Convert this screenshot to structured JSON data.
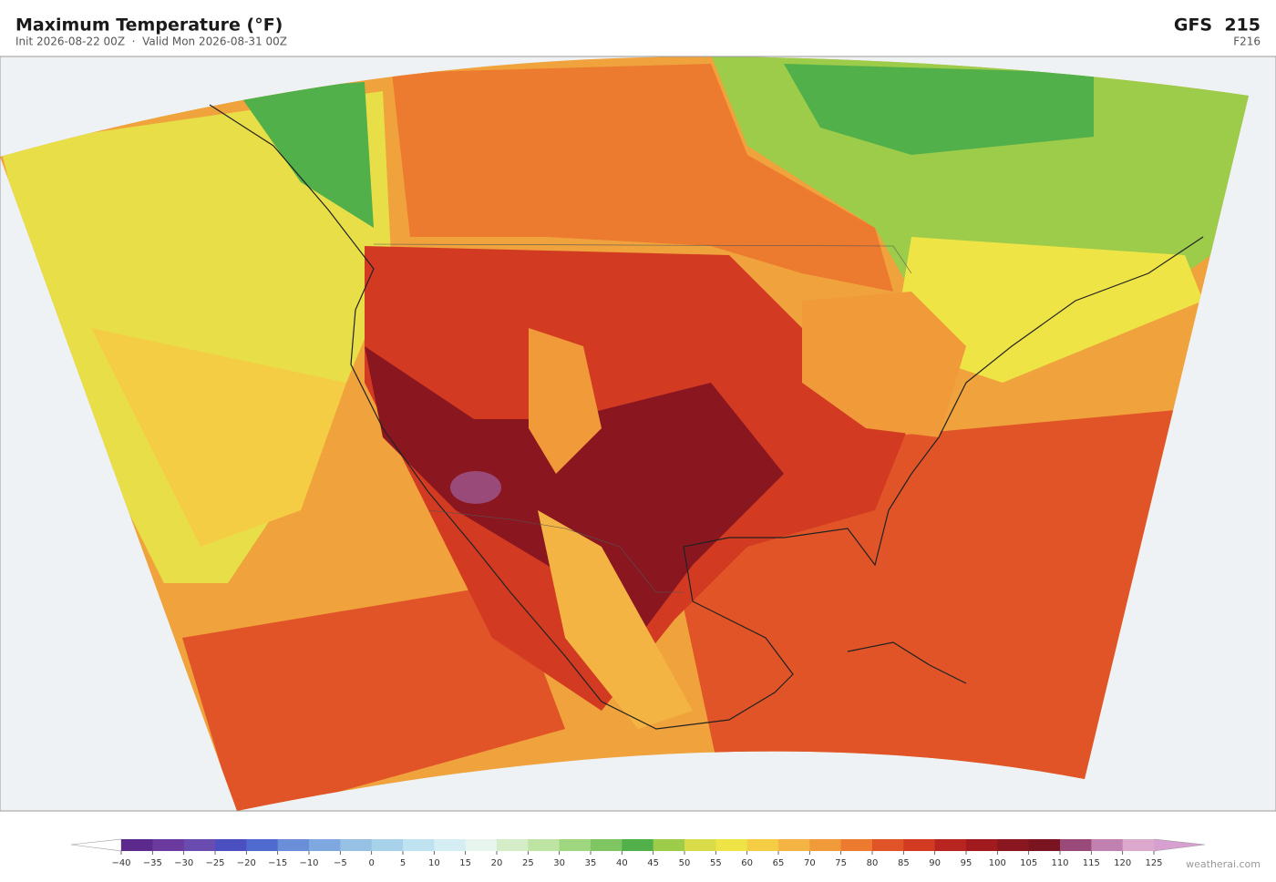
{
  "header": {
    "title": "Maximum Temperature  (°F)",
    "subtitle": "Init 2026-08-22 00Z  ·  Valid Mon 2026-08-31 00Z",
    "model": "GFS  215",
    "forecast_hour": "F216"
  },
  "colorbar": {
    "ticks": [
      {
        "value": -40,
        "label": "−40"
      },
      {
        "value": -35,
        "label": "−35"
      },
      {
        "value": -30,
        "label": "−30"
      },
      {
        "value": -25,
        "label": "−25"
      },
      {
        "value": -20,
        "label": "−20"
      },
      {
        "value": -15,
        "label": "−15"
      },
      {
        "value": -10,
        "label": "−10"
      },
      {
        "value": -5,
        "label": "−5"
      },
      0,
      5,
      10,
      15,
      20,
      25,
      30,
      35,
      40,
      45,
      50,
      55,
      60,
      65,
      70,
      75,
      80,
      85,
      90,
      95,
      100,
      105,
      110,
      115,
      120,
      125
    ],
    "colors": [
      "#5b2a8c",
      "#6a3a9e",
      "#6a4bb0",
      "#4b4fc0",
      "#4f6bd0",
      "#6b8ed8",
      "#80a8e0",
      "#96c0e4",
      "#a8d2ea",
      "#bfe2f0",
      "#d4eef4",
      "#e8f5ee",
      "#d4edc8",
      "#bde4a2",
      "#9fd680",
      "#7fc662",
      "#52b04a",
      "#9ccc4a",
      "#d8dc48",
      "#eee446",
      "#f5cd45",
      "#f4b443",
      "#f09a3a",
      "#ec7a2f",
      "#e05427",
      "#d23a22",
      "#b82420",
      "#a01a1e",
      "#8a1620",
      "#7a1420",
      "#9a4a78",
      "#c080b0",
      "#dca8cc"
    ]
  },
  "credit": "weatherai.com"
}
